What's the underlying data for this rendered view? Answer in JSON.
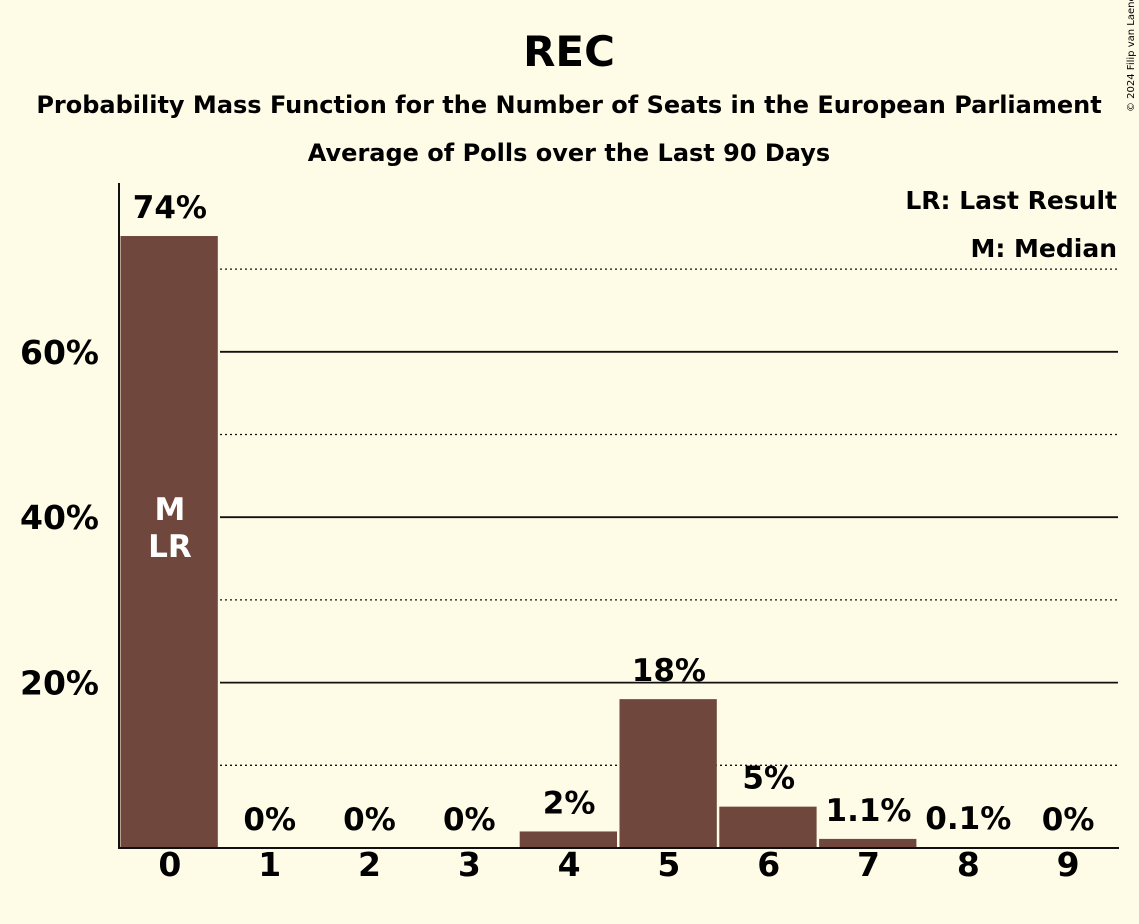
{
  "chart_data": {
    "type": "bar",
    "title": "REC",
    "subtitle": "Probability Mass Function for the Number of Seats in the European Parliament",
    "subtitle2": "Average of Polls over the Last 90 Days",
    "copyright": "© 2024 Filip van Laenen",
    "categories": [
      "0",
      "1",
      "2",
      "3",
      "4",
      "5",
      "6",
      "7",
      "8",
      "9"
    ],
    "values": [
      74,
      0,
      0,
      0,
      2,
      18,
      5,
      1.1,
      0.1,
      0
    ],
    "value_labels": [
      "74%",
      "0%",
      "0%",
      "0%",
      "2%",
      "18%",
      "5%",
      "1.1%",
      "0.1%",
      "0%"
    ],
    "y_ticks": [
      {
        "value": 20,
        "label": "20%"
      },
      {
        "value": 40,
        "label": "40%"
      },
      {
        "value": 60,
        "label": "60%"
      }
    ],
    "ylim": [
      0,
      80
    ],
    "minor_gridlines": [
      10,
      30,
      50,
      70
    ],
    "bar_color": "#6f473c",
    "bar_annotations": [
      {
        "category": "0",
        "lines": [
          "M",
          "LR"
        ]
      }
    ],
    "legend": [
      "LR: Last Result",
      "M: Median"
    ],
    "legend_position": "top-right"
  }
}
